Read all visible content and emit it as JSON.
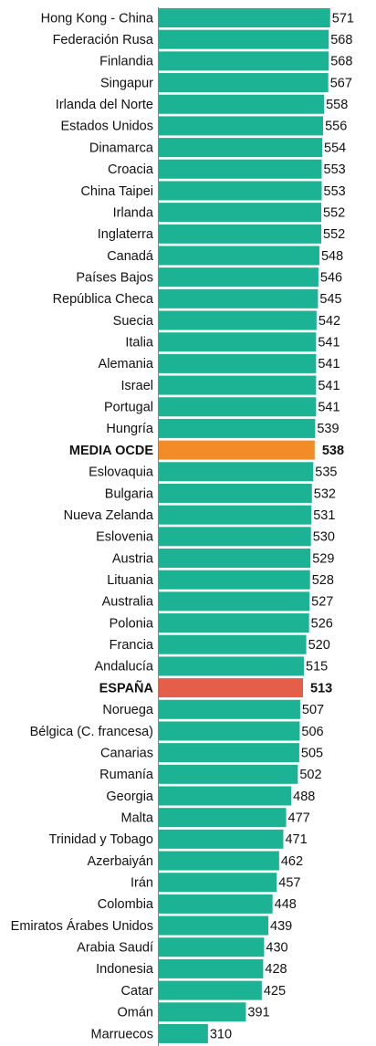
{
  "chart_data": {
    "type": "barh",
    "categories": [
      "Hong Kong - China",
      "Federación Rusa",
      "Finlandia",
      "Singapur",
      "Irlanda del Norte",
      "Estados Unidos",
      "Dinamarca",
      "Croacia",
      "China Taipei",
      "Irlanda",
      "Inglaterra",
      "Canadá",
      "Países Bajos",
      "República Checa",
      "Suecia",
      "Italia",
      "Alemania",
      "Israel",
      "Portugal",
      "Hungría",
      "MEDIA OCDE",
      "Eslovaquia",
      "Bulgaria",
      "Nueva Zelanda",
      "Eslovenia",
      "Austria",
      "Lituania",
      "Australia",
      "Polonia",
      "Francia",
      "Andalucía",
      "ESPAÑA",
      "Noruega",
      "Bélgica (C. francesa)",
      "Canarias",
      "Rumanía",
      "Georgia",
      "Malta",
      "Trinidad y Tobago",
      "Azerbaiyán",
      "Irán",
      "Colombia",
      "Emiratos Árabes Unidos",
      "Arabia Saudí",
      "Indonesia",
      "Catar",
      "Omán",
      "Marruecos"
    ],
    "values": [
      571,
      568,
      568,
      567,
      558,
      556,
      554,
      553,
      553,
      552,
      552,
      548,
      546,
      545,
      542,
      541,
      541,
      541,
      541,
      539,
      538,
      535,
      532,
      531,
      530,
      529,
      528,
      527,
      526,
      520,
      515,
      513,
      507,
      506,
      505,
      502,
      488,
      477,
      471,
      462,
      457,
      448,
      439,
      430,
      428,
      425,
      391,
      310
    ],
    "color": "#1bb394",
    "highlights": [
      {
        "index": 20,
        "color": "#f28c28"
      },
      {
        "index": 31,
        "color": "#e55e4a"
      }
    ],
    "xlim": [
      205,
      600
    ]
  }
}
